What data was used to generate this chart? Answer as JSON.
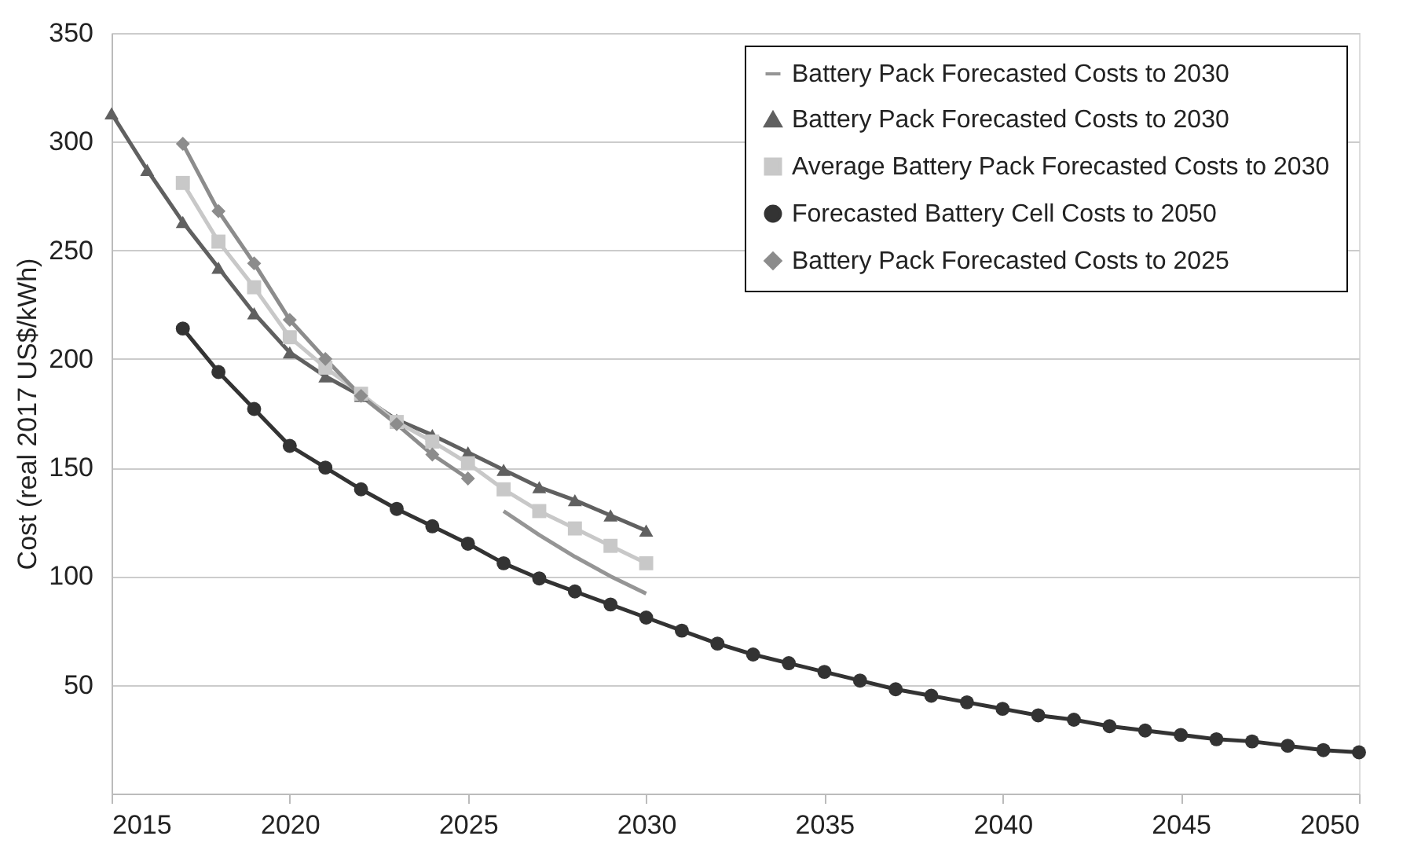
{
  "chart_data": {
    "type": "line",
    "ylabel": "Cost (real 2017 US$/kWh)",
    "xlim": [
      2015,
      2050
    ],
    "xticks": [
      2015,
      2020,
      2025,
      2030,
      2035,
      2040,
      2045,
      2050
    ],
    "ylim": [
      0,
      350
    ],
    "yticks": [
      50,
      100,
      150,
      200,
      250,
      300,
      350
    ],
    "grid": "y",
    "legend": "top right",
    "line_style": "solid",
    "series": [
      {
        "name": "Battery Pack Forecasted Costs to 2030",
        "color": "#959595",
        "marker": "none",
        "x": [
          2026,
          2027,
          2028,
          2029,
          2030
        ],
        "values": [
          130,
          119,
          109,
          100,
          92
        ]
      },
      {
        "name": "Battery Pack Forecasted Costs to 2030",
        "color": "#606060",
        "marker": "triangle",
        "x": [
          2015,
          2016,
          2017,
          2018,
          2019,
          2020,
          2021,
          2022,
          2023,
          2024,
          2025,
          2026,
          2027,
          2028,
          2029,
          2030
        ],
        "values": [
          313,
          287,
          263,
          242,
          221,
          203,
          192,
          183,
          172,
          165,
          157,
          149,
          141,
          135,
          128,
          121
        ]
      },
      {
        "name": "Average Battery Pack Forecasted Costs to 2030",
        "color": "#c8c8c8",
        "marker": "square",
        "x": [
          2017,
          2018,
          2019,
          2020,
          2021,
          2022,
          2023,
          2024,
          2025,
          2026,
          2027,
          2028,
          2029,
          2030
        ],
        "values": [
          281,
          254,
          233,
          210,
          196,
          184,
          171,
          162,
          152,
          140,
          130,
          122,
          114,
          106
        ]
      },
      {
        "name": "Forecasted Battery Cell Costs to 2050",
        "color": "#333333",
        "marker": "circle",
        "x": [
          2017,
          2018,
          2019,
          2020,
          2021,
          2022,
          2023,
          2024,
          2025,
          2026,
          2027,
          2028,
          2029,
          2030,
          2031,
          2032,
          2033,
          2034,
          2035,
          2036,
          2037,
          2038,
          2039,
          2040,
          2041,
          2042,
          2043,
          2044,
          2045,
          2046,
          2047,
          2048,
          2049,
          2050
        ],
        "values": [
          214,
          194,
          177,
          160,
          150,
          140,
          131,
          123,
          115,
          106,
          99,
          93,
          87,
          81,
          75,
          69,
          64,
          60,
          56,
          52,
          48,
          45,
          42,
          39,
          36,
          34,
          31,
          29,
          27,
          25,
          24,
          22,
          20,
          19
        ]
      },
      {
        "name": "Battery Pack Forecasted Costs to 2025",
        "color": "#8c8c8c",
        "marker": "diamond",
        "x": [
          2017,
          2018,
          2019,
          2020,
          2021,
          2022,
          2023,
          2024,
          2025
        ],
        "values": [
          299,
          268,
          244,
          218,
          200,
          183,
          170,
          156,
          145
        ]
      }
    ]
  }
}
